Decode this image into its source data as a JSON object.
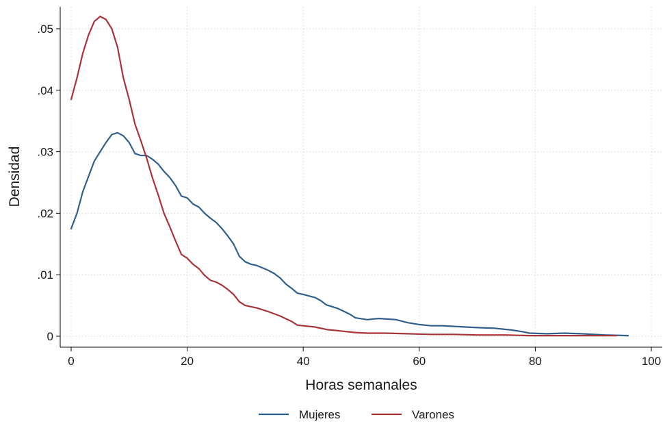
{
  "chart_data": {
    "type": "line",
    "title": "",
    "xlabel": "Horas semanales",
    "ylabel": "Densidad",
    "xlim": [
      0,
      100
    ],
    "ylim": [
      0,
      0.052
    ],
    "x_ticks": [
      0,
      20,
      40,
      60,
      80,
      100
    ],
    "x_tick_labels": [
      "0",
      "20",
      "40",
      "60",
      "80",
      "100"
    ],
    "y_ticks": [
      0,
      0.01,
      0.02,
      0.03,
      0.04,
      0.05
    ],
    "y_tick_labels": [
      "0",
      ".01",
      ".02",
      ".03",
      ".04",
      ".05"
    ],
    "grid": true,
    "legend_position": "bottom-center",
    "series": [
      {
        "name": "Mujeres",
        "color": "#2f5f8a",
        "points": [
          [
            0,
            0.0175
          ],
          [
            1,
            0.02
          ],
          [
            2,
            0.0235
          ],
          [
            3,
            0.026
          ],
          [
            4,
            0.0285
          ],
          [
            5,
            0.03
          ],
          [
            6,
            0.0315
          ],
          [
            7,
            0.0328
          ],
          [
            8,
            0.0331
          ],
          [
            9,
            0.0326
          ],
          [
            10,
            0.0315
          ],
          [
            11,
            0.0297
          ],
          [
            12,
            0.0294
          ],
          [
            13,
            0.0294
          ],
          [
            14,
            0.0288
          ],
          [
            15,
            0.028
          ],
          [
            16,
            0.0268
          ],
          [
            17,
            0.0258
          ],
          [
            18,
            0.0245
          ],
          [
            19,
            0.0228
          ],
          [
            20,
            0.0225
          ],
          [
            21,
            0.0215
          ],
          [
            22,
            0.021
          ],
          [
            23,
            0.02
          ],
          [
            24,
            0.0192
          ],
          [
            25,
            0.0185
          ],
          [
            26,
            0.0175
          ],
          [
            27,
            0.0163
          ],
          [
            28,
            0.015
          ],
          [
            29,
            0.013
          ],
          [
            30,
            0.0121
          ],
          [
            31,
            0.0117
          ],
          [
            32,
            0.0115
          ],
          [
            33,
            0.0111
          ],
          [
            34,
            0.0107
          ],
          [
            35,
            0.0102
          ],
          [
            36,
            0.0095
          ],
          [
            37,
            0.0085
          ],
          [
            38,
            0.0078
          ],
          [
            39,
            0.007
          ],
          [
            40,
            0.0068
          ],
          [
            42,
            0.0063
          ],
          [
            43,
            0.0058
          ],
          [
            44,
            0.0051
          ],
          [
            46,
            0.0045
          ],
          [
            48,
            0.0036
          ],
          [
            49,
            0.003
          ],
          [
            51,
            0.0027
          ],
          [
            53,
            0.0029
          ],
          [
            56,
            0.0027
          ],
          [
            58,
            0.0022
          ],
          [
            60,
            0.0019
          ],
          [
            62,
            0.0017
          ],
          [
            64,
            0.0017
          ],
          [
            66,
            0.0016
          ],
          [
            68,
            0.0015
          ],
          [
            70,
            0.0014
          ],
          [
            73,
            0.0013
          ],
          [
            76,
            0.001
          ],
          [
            78,
            0.0007
          ],
          [
            79,
            0.0005
          ],
          [
            82,
            0.0004
          ],
          [
            85,
            0.0005
          ],
          [
            88,
            0.0004
          ],
          [
            92,
            0.0002
          ],
          [
            96,
            0.0001
          ]
        ]
      },
      {
        "name": "Varones",
        "color": "#a8343a",
        "points": [
          [
            0,
            0.0385
          ],
          [
            1,
            0.042
          ],
          [
            2,
            0.046
          ],
          [
            3,
            0.049
          ],
          [
            4,
            0.0512
          ],
          [
            5,
            0.052
          ],
          [
            6,
            0.0515
          ],
          [
            7,
            0.05
          ],
          [
            8,
            0.047
          ],
          [
            9,
            0.042
          ],
          [
            10,
            0.0385
          ],
          [
            11,
            0.0345
          ],
          [
            12,
            0.0318
          ],
          [
            13,
            0.029
          ],
          [
            14,
            0.0258
          ],
          [
            15,
            0.023
          ],
          [
            16,
            0.02
          ],
          [
            17,
            0.0178
          ],
          [
            18,
            0.0155
          ],
          [
            19,
            0.0133
          ],
          [
            20,
            0.0127
          ],
          [
            21,
            0.0117
          ],
          [
            22,
            0.011
          ],
          [
            23,
            0.0099
          ],
          [
            24,
            0.0091
          ],
          [
            25,
            0.0088
          ],
          [
            26,
            0.0083
          ],
          [
            27,
            0.0076
          ],
          [
            28,
            0.0068
          ],
          [
            29,
            0.0056
          ],
          [
            30,
            0.005
          ],
          [
            32,
            0.0046
          ],
          [
            34,
            0.004
          ],
          [
            36,
            0.0033
          ],
          [
            38,
            0.0024
          ],
          [
            39,
            0.0018
          ],
          [
            42,
            0.0015
          ],
          [
            44,
            0.0011
          ],
          [
            47,
            0.0008
          ],
          [
            49,
            0.0006
          ],
          [
            51,
            0.0005
          ],
          [
            54,
            0.0005
          ],
          [
            58,
            0.0004
          ],
          [
            62,
            0.0003
          ],
          [
            66,
            0.0003
          ],
          [
            70,
            0.0002
          ],
          [
            75,
            0.0002
          ],
          [
            79,
            0.0001
          ],
          [
            85,
            0.0001
          ],
          [
            90,
            0.0001
          ],
          [
            94,
            0.0001
          ]
        ]
      }
    ]
  }
}
